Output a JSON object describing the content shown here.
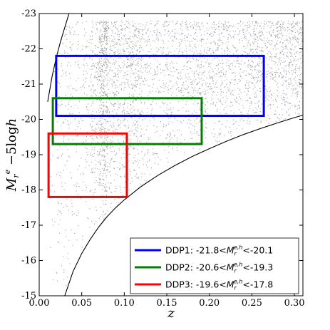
{
  "chart_data": {
    "type": "scatter",
    "xlabel": "z",
    "ylabel": "M_r^e − 5log h",
    "xlim": [
      0.0,
      0.31
    ],
    "ylim": [
      -15,
      -23
    ],
    "y_inverted": true,
    "x_ticks": [
      "0.00",
      "0.05",
      "0.10",
      "0.15",
      "0.20",
      "0.25",
      "0.30"
    ],
    "x_tick_values": [
      0.0,
      0.05,
      0.1,
      0.15,
      0.2,
      0.25,
      0.3
    ],
    "y_ticks": [
      "-15",
      "-16",
      "-17",
      "-18",
      "-19",
      "-20",
      "-21",
      "-22",
      "-23"
    ],
    "y_tick_values": [
      -15,
      -16,
      -17,
      -18,
      -19,
      -20,
      -21,
      -22,
      -23
    ],
    "scatter_color": "#a0a0a0",
    "galaxy_density_note": "",
    "faint_limit_curve": [
      [
        0.03,
        -15.0
      ],
      [
        0.04,
        -15.7
      ],
      [
        0.05,
        -16.2
      ],
      [
        0.06,
        -16.6
      ],
      [
        0.07,
        -16.95
      ],
      [
        0.08,
        -17.25
      ],
      [
        0.09,
        -17.5
      ],
      [
        0.1,
        -17.72
      ],
      [
        0.12,
        -18.1
      ],
      [
        0.14,
        -18.42
      ],
      [
        0.16,
        -18.7
      ],
      [
        0.18,
        -18.95
      ],
      [
        0.2,
        -19.17
      ],
      [
        0.22,
        -19.38
      ],
      [
        0.24,
        -19.57
      ],
      [
        0.26,
        -19.74
      ],
      [
        0.28,
        -19.9
      ],
      [
        0.3,
        -20.05
      ],
      [
        0.31,
        -20.12
      ]
    ],
    "bright_limit_curve": [
      [
        0.01,
        -20.5
      ],
      [
        0.015,
        -21.2
      ],
      [
        0.02,
        -21.75
      ],
      [
        0.025,
        -22.2
      ],
      [
        0.03,
        -22.6
      ],
      [
        0.035,
        -23.0
      ]
    ],
    "boxes": [
      {
        "name": "DDP1",
        "color": "#0000ff",
        "z_min": 0.02,
        "z_max": 0.264,
        "m_bright": -21.8,
        "m_faint": -20.1
      },
      {
        "name": "DDP2",
        "color": "#008000",
        "z_min": 0.016,
        "z_max": 0.191,
        "m_bright": -20.6,
        "m_faint": -19.3
      },
      {
        "name": "DDP3",
        "color": "#ff0000",
        "z_min": 0.011,
        "z_max": 0.103,
        "m_bright": -19.6,
        "m_faint": -17.8
      }
    ],
    "legend_placement": "lower-right",
    "legend": [
      {
        "name": "DDP1",
        "lo": "-21.8",
        "hi": "-20.1",
        "color": "#0000ff"
      },
      {
        "name": "DDP2",
        "lo": "-20.6",
        "hi": "-19.3",
        "color": "#008000"
      },
      {
        "name": "DDP3",
        "lo": "-19.6",
        "hi": "-17.8",
        "color": "#ff0000"
      }
    ]
  }
}
